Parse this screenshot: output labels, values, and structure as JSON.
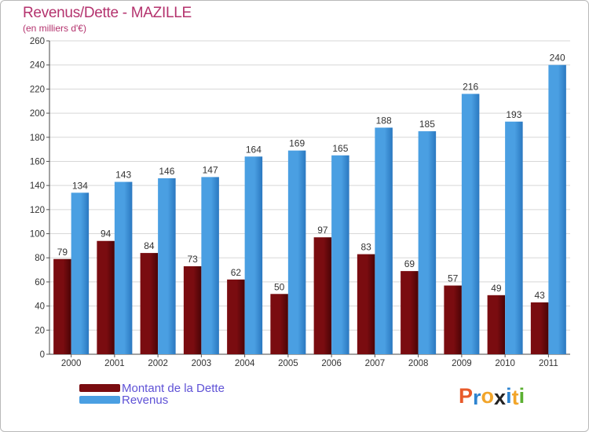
{
  "chart_data": {
    "type": "bar",
    "title": "Revenus/Dette - MAZILLE",
    "subtitle": "(en milliers d'€)",
    "categories": [
      "2000",
      "2001",
      "2002",
      "2003",
      "2004",
      "2005",
      "2006",
      "2007",
      "2008",
      "2009",
      "2010",
      "2011"
    ],
    "series": [
      {
        "name": "Montant de la Dette",
        "color": "#7a0c10",
        "values": [
          79,
          94,
          84,
          73,
          62,
          50,
          97,
          83,
          69,
          57,
          49,
          43
        ]
      },
      {
        "name": "Revenus",
        "color": "#4a9fe2",
        "values": [
          134,
          143,
          146,
          147,
          164,
          169,
          165,
          188,
          185,
          216,
          193,
          240
        ]
      }
    ],
    "ylim": [
      0,
      260
    ],
    "yticks": [
      0,
      20,
      40,
      60,
      80,
      100,
      120,
      140,
      160,
      180,
      200,
      220,
      240,
      260
    ],
    "grid": true,
    "legend_position": "bottom-left"
  },
  "logo": {
    "letters": [
      "P",
      "r",
      "o",
      "x",
      "i",
      "t",
      "i"
    ],
    "colors": [
      "#e85a2a",
      "#2e84d0",
      "#f2a52a",
      "#222222",
      "#2e84d0",
      "#f2a52a",
      "#5bb032"
    ]
  }
}
